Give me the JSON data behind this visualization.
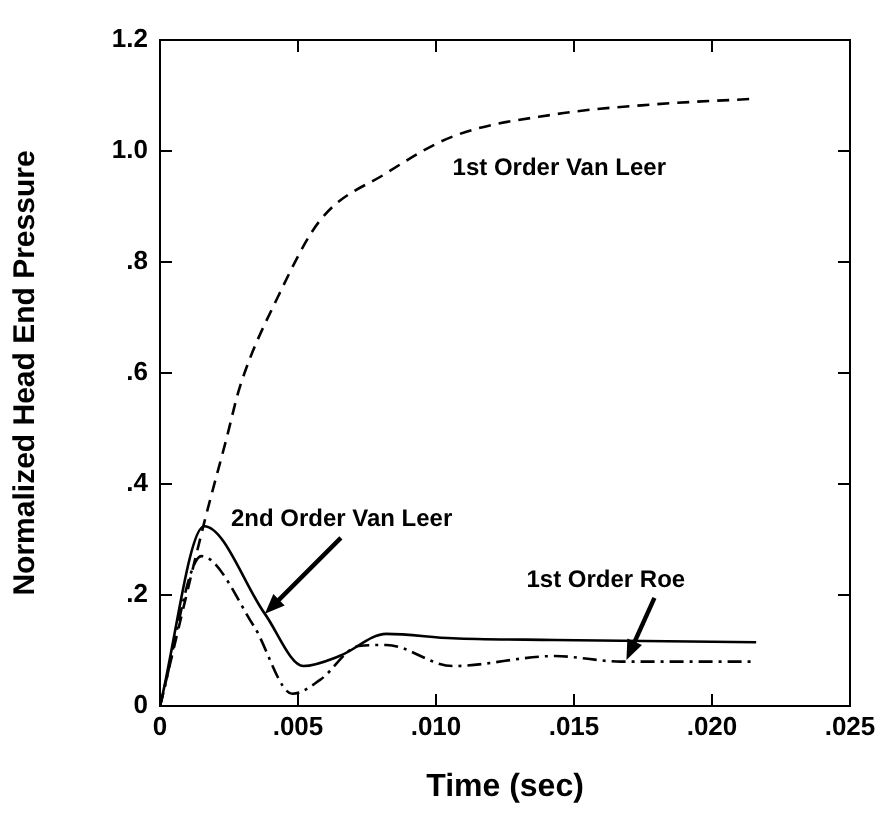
{
  "chart_data": {
    "type": "line",
    "xlabel": "Time (sec)",
    "ylabel": "Normalized Head End Pressure",
    "xlim": [
      0,
      0.025
    ],
    "xticks": [
      {
        "value": 0,
        "label": "0"
      },
      {
        "value": 0.005,
        "label": ".005"
      },
      {
        "value": 0.01,
        "label": ".010"
      },
      {
        "value": 0.015,
        "label": ".015"
      },
      {
        "value": 0.02,
        "label": ".020"
      },
      {
        "value": 0.025,
        "label": ".025"
      }
    ],
    "ylim": [
      0,
      1.2
    ],
    "yticks": [
      {
        "value": 0,
        "label": "0"
      },
      {
        "value": 0.2,
        "label": ".2"
      },
      {
        "value": 0.4,
        "label": ".4"
      },
      {
        "value": 0.6,
        "label": ".6"
      },
      {
        "value": 0.8,
        "label": ".8"
      },
      {
        "value": 1.0,
        "label": "1.0"
      },
      {
        "value": 1.2,
        "label": "1.2"
      }
    ],
    "grid": false,
    "legend": false,
    "marker": "none",
    "series": [
      {
        "color": "#000000",
        "line_style": "dashed",
        "x": [
          0,
          0.0016,
          0.0024,
          0.0029,
          0.0043,
          0.0058,
          0.0082,
          0.0106,
          0.0143,
          0.0179,
          0.0215
        ],
        "values": [
          0,
          0.33,
          0.48,
          0.576,
          0.74,
          0.875,
          0.96,
          1.026,
          1.066,
          1.084,
          1.094
        ]
      },
      {
        "color": "#000000",
        "line_style": "solid",
        "x": [
          0,
          0.0016,
          0.0038,
          0.0052,
          0.0065,
          0.0082,
          0.0106,
          0.0143,
          0.0216
        ],
        "values": [
          0,
          0.324,
          0.166,
          0.072,
          0.09,
          0.13,
          0.122,
          0.119,
          0.115
        ]
      },
      {
        "color": "#000000",
        "line_style": "dotted",
        "x": [
          0,
          0.0015,
          0.0034,
          0.0048,
          0.0058,
          0.0072,
          0.0082,
          0.0106,
          0.0143,
          0.0167,
          0.0215
        ],
        "values": [
          0,
          0.27,
          0.144,
          0.022,
          0.047,
          0.108,
          0.11,
          0.072,
          0.09,
          0.08,
          0.08
        ]
      }
    ],
    "annotations": [
      {
        "text": "1st Order Van Leer",
        "x": 0.0106,
        "y": 1.026
      },
      {
        "text": "2nd Order Van Leer",
        "x": 0.0038,
        "y": 0.166
      },
      {
        "text": "1st Order Roe",
        "x": 0.0169,
        "y": 0.083
      }
    ]
  }
}
